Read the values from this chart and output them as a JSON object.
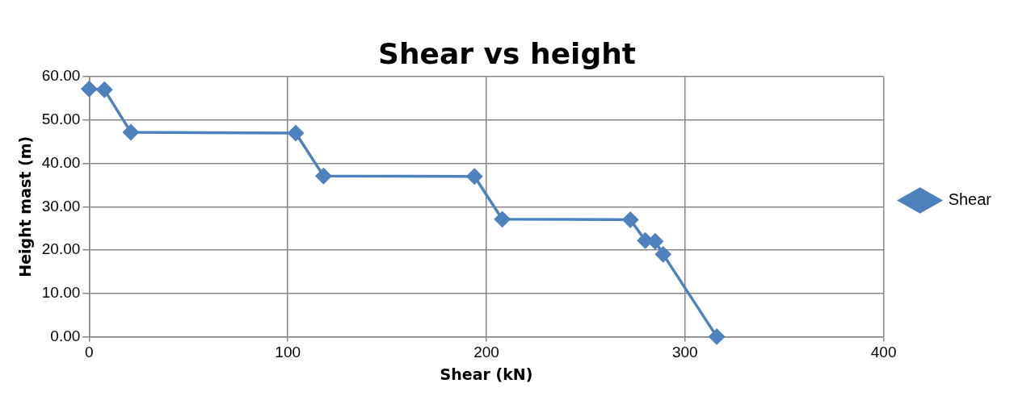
{
  "chart_data": {
    "type": "line",
    "title": "Shear vs height",
    "xlabel": "Shear (kN)",
    "ylabel": "Height mast (m)",
    "x": [
      0,
      7.7,
      21,
      104,
      118,
      194,
      208,
      272.5,
      280,
      285,
      289,
      316
    ],
    "series": [
      {
        "name": "Shear",
        "color": "#4f81bd",
        "values": [
          57.2,
          57,
          47.2,
          47,
          37.1,
          37,
          27.1,
          27,
          22.2,
          22,
          19,
          0
        ]
      }
    ],
    "xlim": [
      0,
      400
    ],
    "xticks": [
      0,
      100,
      200,
      300,
      400
    ],
    "ylim": [
      0,
      60
    ],
    "yticks": [
      {
        "value": 0,
        "label": "0.00"
      },
      {
        "value": 10,
        "label": "10.00"
      },
      {
        "value": 20,
        "label": "20.00"
      },
      {
        "value": 30,
        "label": "30.00"
      },
      {
        "value": 40,
        "label": "40.00"
      },
      {
        "value": 50,
        "label": "50.00"
      },
      {
        "value": 60,
        "label": "60.00"
      }
    ],
    "grid": true,
    "legend": "right",
    "marker": "diamond",
    "line_style": "solid"
  }
}
